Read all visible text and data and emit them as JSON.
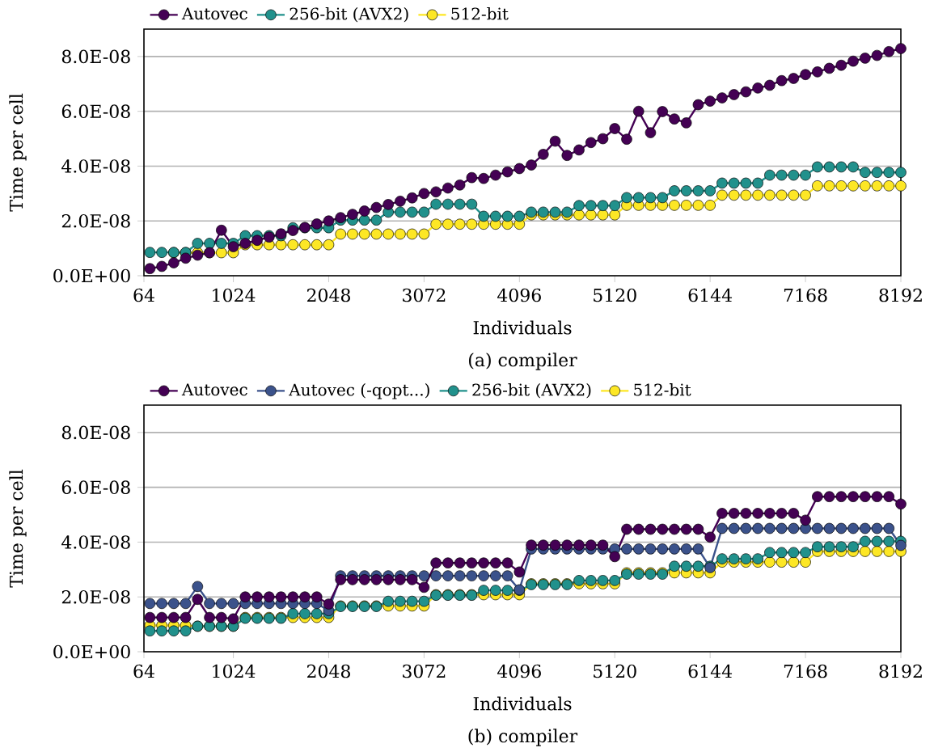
{
  "chart_data": [
    {
      "type": "line",
      "title": "(a) compiler",
      "xlabel": "Individuals",
      "ylabel": "Time per cell",
      "x": [
        128,
        256,
        384,
        512,
        640,
        768,
        896,
        1024,
        1152,
        1280,
        1408,
        1536,
        1664,
        1792,
        1920,
        2048,
        2176,
        2304,
        2432,
        2560,
        2688,
        2816,
        2944,
        3072,
        3200,
        3328,
        3456,
        3584,
        3712,
        3840,
        3968,
        4096,
        4224,
        4352,
        4480,
        4608,
        4736,
        4864,
        4992,
        5120,
        5248,
        5376,
        5504,
        5632,
        5760,
        5888,
        6016,
        6144,
        6272,
        6400,
        6528,
        6656,
        6784,
        6912,
        7040,
        7168,
        7296,
        7424,
        7552,
        7680,
        7808,
        7936,
        8064,
        8192
      ],
      "series": [
        {
          "name": "Autovec",
          "color": "#440154",
          "values": [
            2.6e-09,
            3.4e-09,
            4.7e-09,
            6.4e-09,
            7.5e-09,
            8.4e-09,
            1.66e-08,
            1.06e-08,
            1.18e-08,
            1.29e-08,
            1.41e-08,
            1.53e-08,
            1.65e-08,
            1.76e-08,
            1.89e-08,
            2e-08,
            2.12e-08,
            2.24e-08,
            2.36e-08,
            2.49e-08,
            2.6e-08,
            2.72e-08,
            2.84e-08,
            3e-08,
            3.06e-08,
            3.2e-08,
            3.31e-08,
            3.58e-08,
            3.55e-08,
            3.67e-08,
            3.79e-08,
            3.91e-08,
            4.04e-08,
            4.43e-08,
            4.91e-08,
            4.39e-08,
            4.59e-08,
            4.86e-08,
            5e-08,
            5.37e-08,
            4.98e-08,
            6e-08,
            5.22e-08,
            5.99e-08,
            5.72e-08,
            5.58e-08,
            6.24e-08,
            6.37e-08,
            6.49e-08,
            6.61e-08,
            6.71e-08,
            6.85e-08,
            6.95e-08,
            7.12e-08,
            7.2e-08,
            7.34e-08,
            7.44e-08,
            7.57e-08,
            7.68e-08,
            7.83e-08,
            7.94e-08,
            8.04e-08,
            8.18e-08,
            8.29e-08
          ]
        },
        {
          "name": "256-bit (AVX2)",
          "color": "#21918c",
          "values": [
            8.5e-09,
            8.5e-09,
            8.5e-09,
            8.5e-09,
            1.18e-08,
            1.18e-08,
            1.18e-08,
            1.18e-08,
            1.46e-08,
            1.46e-08,
            1.46e-08,
            1.46e-08,
            1.75e-08,
            1.75e-08,
            1.75e-08,
            1.75e-08,
            2.03e-08,
            2.03e-08,
            2.03e-08,
            2.03e-08,
            2.32e-08,
            2.32e-08,
            2.32e-08,
            2.32e-08,
            2.61e-08,
            2.61e-08,
            2.61e-08,
            2.61e-08,
            2.17e-08,
            2.17e-08,
            2.17e-08,
            2.17e-08,
            2.32e-08,
            2.32e-08,
            2.32e-08,
            2.32e-08,
            2.56e-08,
            2.56e-08,
            2.56e-08,
            2.56e-08,
            2.85e-08,
            2.85e-08,
            2.85e-08,
            2.85e-08,
            3.1e-08,
            3.1e-08,
            3.1e-08,
            3.1e-08,
            3.38e-08,
            3.38e-08,
            3.38e-08,
            3.38e-08,
            3.67e-08,
            3.67e-08,
            3.67e-08,
            3.67e-08,
            3.97e-08,
            3.97e-08,
            3.97e-08,
            3.97e-08,
            3.77e-08,
            3.77e-08,
            3.77e-08,
            3.77e-08
          ]
        },
        {
          "name": "512-bit",
          "color": "#fde725",
          "values": [
            null,
            null,
            8.4e-09,
            8.4e-09,
            8.4e-09,
            8.4e-09,
            8.4e-09,
            8.4e-09,
            1.13e-08,
            1.13e-08,
            1.13e-08,
            1.13e-08,
            1.13e-08,
            1.13e-08,
            1.13e-08,
            1.13e-08,
            1.52e-08,
            1.52e-08,
            1.52e-08,
            1.52e-08,
            1.52e-08,
            1.52e-08,
            1.52e-08,
            1.52e-08,
            1.88e-08,
            1.88e-08,
            1.88e-08,
            1.88e-08,
            1.88e-08,
            1.88e-08,
            1.88e-08,
            1.88e-08,
            2.22e-08,
            2.22e-08,
            2.22e-08,
            2.22e-08,
            2.22e-08,
            2.22e-08,
            2.22e-08,
            2.22e-08,
            2.57e-08,
            2.57e-08,
            2.57e-08,
            2.57e-08,
            2.57e-08,
            2.57e-08,
            2.57e-08,
            2.57e-08,
            2.94e-08,
            2.94e-08,
            2.94e-08,
            2.94e-08,
            2.94e-08,
            2.94e-08,
            2.94e-08,
            2.94e-08,
            3.28e-08,
            3.28e-08,
            3.28e-08,
            3.28e-08,
            3.28e-08,
            3.28e-08,
            3.28e-08,
            3.28e-08
          ]
        }
      ],
      "xlim": [
        64,
        8192
      ],
      "ylim": [
        0,
        9e-08
      ],
      "xticks": [
        64,
        1024,
        2048,
        3072,
        4096,
        5120,
        6144,
        7168,
        8192
      ],
      "yticks": [
        {
          "value": 0,
          "label": "0.0E+00"
        },
        {
          "value": 2e-08,
          "label": "2.0E-08"
        },
        {
          "value": 4e-08,
          "label": "4.0E-08"
        },
        {
          "value": 6e-08,
          "label": "6.0E-08"
        },
        {
          "value": 8e-08,
          "label": "8.0E-08"
        }
      ],
      "grid": "y",
      "legend": "top left",
      "marker": "circle",
      "line_style": "solid"
    },
    {
      "type": "line",
      "title": "(b) compiler",
      "xlabel": "Individuals",
      "ylabel": "Time per cell",
      "x": [
        128,
        256,
        384,
        512,
        640,
        768,
        896,
        1024,
        1152,
        1280,
        1408,
        1536,
        1664,
        1792,
        1920,
        2048,
        2176,
        2304,
        2432,
        2560,
        2688,
        2816,
        2944,
        3072,
        3200,
        3328,
        3456,
        3584,
        3712,
        3840,
        3968,
        4096,
        4224,
        4352,
        4480,
        4608,
        4736,
        4864,
        4992,
        5120,
        5248,
        5376,
        5504,
        5632,
        5760,
        5888,
        6016,
        6144,
        6272,
        6400,
        6528,
        6656,
        6784,
        6912,
        7040,
        7168,
        7296,
        7424,
        7552,
        7680,
        7808,
        7936,
        8064,
        8192
      ],
      "series": [
        {
          "name": "Autovec",
          "color": "#440154",
          "values": [
            1.25e-08,
            1.25e-08,
            1.25e-08,
            1.25e-08,
            1.91e-08,
            1.25e-08,
            1.25e-08,
            1.2e-08,
            2e-08,
            2e-08,
            2e-08,
            2e-08,
            2e-08,
            2e-08,
            2e-08,
            1.74e-08,
            2.63e-08,
            2.63e-08,
            2.63e-08,
            2.63e-08,
            2.63e-08,
            2.63e-08,
            2.63e-08,
            2.35e-08,
            3.24e-08,
            3.24e-08,
            3.24e-08,
            3.24e-08,
            3.24e-08,
            3.24e-08,
            3.24e-08,
            2.91e-08,
            3.89e-08,
            3.89e-08,
            3.89e-08,
            3.89e-08,
            3.89e-08,
            3.89e-08,
            3.89e-08,
            3.47e-08,
            4.47e-08,
            4.47e-08,
            4.47e-08,
            4.47e-08,
            4.47e-08,
            4.47e-08,
            4.47e-08,
            4.18e-08,
            5.05e-08,
            5.05e-08,
            5.05e-08,
            5.05e-08,
            5.05e-08,
            5.05e-08,
            5.05e-08,
            4.8e-08,
            5.66e-08,
            5.66e-08,
            5.66e-08,
            5.66e-08,
            5.66e-08,
            5.66e-08,
            5.66e-08,
            5.39e-08
          ]
        },
        {
          "name": "Autovec (-qopt...)",
          "color": "#3b528b",
          "values": [
            1.76e-08,
            1.76e-08,
            1.76e-08,
            1.76e-08,
            2.38e-08,
            1.76e-08,
            1.76e-08,
            1.76e-08,
            1.76e-08,
            1.76e-08,
            1.76e-08,
            1.76e-08,
            1.76e-08,
            1.76e-08,
            1.76e-08,
            1.5e-08,
            2.77e-08,
            2.77e-08,
            2.77e-08,
            2.77e-08,
            2.77e-08,
            2.77e-08,
            2.77e-08,
            2.77e-08,
            2.77e-08,
            2.77e-08,
            2.77e-08,
            2.77e-08,
            2.77e-08,
            2.77e-08,
            2.77e-08,
            2.26e-08,
            3.75e-08,
            3.75e-08,
            3.75e-08,
            3.75e-08,
            3.75e-08,
            3.75e-08,
            3.75e-08,
            3.75e-08,
            3.75e-08,
            3.75e-08,
            3.75e-08,
            3.75e-08,
            3.75e-08,
            3.75e-08,
            3.75e-08,
            3.07e-08,
            4.5e-08,
            4.5e-08,
            4.5e-08,
            4.5e-08,
            4.5e-08,
            4.5e-08,
            4.5e-08,
            4.5e-08,
            4.5e-08,
            4.5e-08,
            4.5e-08,
            4.5e-08,
            4.5e-08,
            4.5e-08,
            4.5e-08,
            3.88e-08
          ]
        },
        {
          "name": "256-bit (AVX2)",
          "color": "#21918c",
          "values": [
            7.6e-09,
            7.6e-09,
            7.6e-09,
            7.6e-09,
            9.3e-09,
            9.3e-09,
            9.3e-09,
            9.3e-09,
            1.22e-08,
            1.22e-08,
            1.22e-08,
            1.22e-08,
            1.39e-08,
            1.39e-08,
            1.39e-08,
            1.39e-08,
            1.65e-08,
            1.65e-08,
            1.65e-08,
            1.65e-08,
            1.84e-08,
            1.84e-08,
            1.84e-08,
            1.84e-08,
            2.06e-08,
            2.06e-08,
            2.06e-08,
            2.06e-08,
            2.24e-08,
            2.24e-08,
            2.24e-08,
            2.24e-08,
            2.45e-08,
            2.45e-08,
            2.45e-08,
            2.45e-08,
            2.6e-08,
            2.6e-08,
            2.6e-08,
            2.6e-08,
            2.83e-08,
            2.83e-08,
            2.83e-08,
            2.83e-08,
            3.12e-08,
            3.12e-08,
            3.12e-08,
            3.12e-08,
            3.39e-08,
            3.39e-08,
            3.39e-08,
            3.39e-08,
            3.62e-08,
            3.62e-08,
            3.62e-08,
            3.62e-08,
            3.83e-08,
            3.83e-08,
            3.83e-08,
            3.83e-08,
            4.03e-08,
            4.03e-08,
            4.03e-08,
            4.03e-08
          ]
        },
        {
          "name": "512-bit",
          "color": "#fde725",
          "values": [
            9.6e-09,
            9.6e-09,
            9.6e-09,
            9.6e-09,
            9.3e-09,
            9.3e-09,
            9.3e-09,
            9.3e-09,
            1.25e-08,
            1.25e-08,
            1.25e-08,
            1.25e-08,
            1.25e-08,
            1.25e-08,
            1.25e-08,
            1.25e-08,
            1.67e-08,
            1.67e-08,
            1.67e-08,
            1.67e-08,
            1.67e-08,
            1.67e-08,
            1.67e-08,
            1.67e-08,
            2.08e-08,
            2.08e-08,
            2.08e-08,
            2.08e-08,
            2.08e-08,
            2.08e-08,
            2.08e-08,
            2.08e-08,
            2.48e-08,
            2.48e-08,
            2.48e-08,
            2.48e-08,
            2.48e-08,
            2.48e-08,
            2.48e-08,
            2.48e-08,
            2.88e-08,
            2.88e-08,
            2.88e-08,
            2.88e-08,
            2.88e-08,
            2.88e-08,
            2.88e-08,
            2.88e-08,
            3.27e-08,
            3.27e-08,
            3.27e-08,
            3.27e-08,
            3.27e-08,
            3.27e-08,
            3.27e-08,
            3.27e-08,
            3.66e-08,
            3.66e-08,
            3.66e-08,
            3.66e-08,
            3.66e-08,
            3.66e-08,
            3.66e-08,
            3.66e-08
          ]
        }
      ],
      "xlim": [
        64,
        8192
      ],
      "ylim": [
        0,
        9e-08
      ],
      "xticks": [
        64,
        1024,
        2048,
        3072,
        4096,
        5120,
        6144,
        7168,
        8192
      ],
      "yticks": [
        {
          "value": 0,
          "label": "0.0E+00"
        },
        {
          "value": 2e-08,
          "label": "2.0E-08"
        },
        {
          "value": 4e-08,
          "label": "4.0E-08"
        },
        {
          "value": 6e-08,
          "label": "6.0E-08"
        },
        {
          "value": 8e-08,
          "label": "8.0E-08"
        }
      ],
      "grid": "y",
      "legend": "top left",
      "marker": "circle",
      "line_style": "solid"
    }
  ]
}
